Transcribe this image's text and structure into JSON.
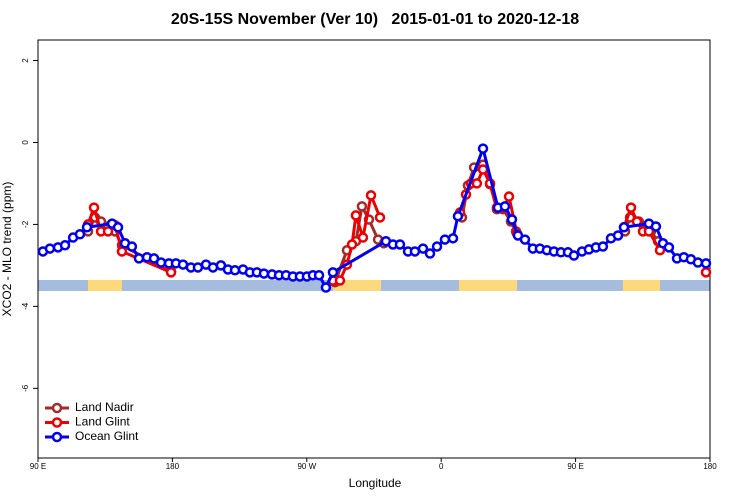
{
  "chart_data": {
    "type": "line",
    "title": "20S-15S November (Ver 10)   2015-01-01 to 2020-12-18",
    "xlabel": "Longitude",
    "ylabel": "XCO2 - MLO trend (ppm)",
    "xlim": [
      90,
      540
    ],
    "ylim": [
      -7.7,
      2.5
    ],
    "xticks": [
      {
        "value": 90,
        "label": "90 E"
      },
      {
        "value": 180,
        "label": "180"
      },
      {
        "value": 270,
        "label": "90 W"
      },
      {
        "value": 360,
        "label": "0"
      },
      {
        "value": 450,
        "label": "90 E"
      },
      {
        "value": 540,
        "label": "180"
      }
    ],
    "yticks": [
      -6,
      -4,
      -2,
      0,
      2
    ],
    "legend": "bottom-left",
    "series": [
      {
        "name": "Land Nadir",
        "color": "#a52a2a",
        "x": [
          123.5,
          128.2,
          132.2,
          136.9,
          141.6,
          146.2,
          179.1,
          null,
          288.9,
          296.9,
          302.9,
          306.9,
          311.6,
          317.7,
          321.7,
          null,
          373.9,
          377.9,
          382.0,
          388.0,
          392.7,
          397.3,
          401.4,
          406.7,
          410.1,
          null,
          483.1,
          486.4,
          492.4,
          496.5,
          500.5,
          505.2
        ],
        "values": [
          -2.17,
          -1.83,
          -1.93,
          -2.05,
          -2.17,
          -2.51,
          -3.15,
          null,
          -3.41,
          -2.63,
          -2.41,
          -1.56,
          -1.88,
          -2.37,
          -2.46,
          null,
          -1.83,
          -1.05,
          -0.61,
          -0.54,
          -1.02,
          -1.63,
          -1.63,
          -1.93,
          -2.17,
          null,
          -2.17,
          -1.83,
          -1.93,
          -2.12,
          -2.17,
          -2.41
        ]
      },
      {
        "name": "Land Glint",
        "color": "#ee0000",
        "x": [
          123.5,
          127.5,
          132.2,
          136.9,
          141.6,
          146.2,
          179.1,
          null,
          287.5,
          292.2,
          296.9,
          300.3,
          302.9,
          307.6,
          313.0,
          319.0,
          null,
          372.6,
          376.6,
          379.9,
          383.9,
          388.0,
          392.7,
          397.3,
          402.0,
          405.4,
          410.7,
          null,
          482.4,
          487.1,
          491.1,
          495.1,
          499.1,
          506.5,
          null,
          537.3
        ],
        "values": [
          -2.0,
          -1.59,
          -2.17,
          -2.17,
          -2.02,
          -2.66,
          -3.17,
          null,
          -3.37,
          -3.37,
          -2.98,
          -2.49,
          -1.78,
          -2.32,
          -1.29,
          -1.83,
          null,
          -1.71,
          -1.27,
          -1.0,
          -1.0,
          -0.66,
          -1.0,
          -1.59,
          -1.59,
          -1.32,
          -2.22,
          null,
          -2.07,
          -1.59,
          -1.93,
          -2.17,
          -2.17,
          -2.63,
          null,
          -3.17
        ]
      },
      {
        "name": "Ocean Glint",
        "color": "#0000ee",
        "x": [
          93.3,
          98.0,
          103.4,
          108.1,
          113.5,
          118.1,
          122.8,
          139.6,
          143.6,
          148.3,
          152.9,
          157.6,
          163.0,
          167.7,
          172.4,
          177.7,
          182.4,
          187.1,
          192.4,
          197.1,
          202.5,
          207.2,
          212.5,
          217.2,
          221.9,
          227.3,
          231.9,
          236.6,
          241.3,
          246.7,
          251.4,
          256.1,
          260.7,
          265.4,
          270.1,
          274.1,
          278.2,
          282.8,
          287.5,
          323.0,
          327.7,
          332.4,
          337.8,
          342.4,
          347.8,
          352.5,
          357.2,
          362.5,
          367.9,
          371.2,
          388.0,
          398.0,
          402.7,
          407.4,
          411.4,
          416.1,
          421.4,
          426.1,
          430.8,
          435.5,
          440.2,
          444.9,
          448.9,
          454.3,
          458.9,
          463.6,
          468.3,
          473.7,
          478.4,
          482.4,
          499.1,
          503.8,
          508.5,
          512.5,
          517.9,
          522.5,
          527.2,
          531.9,
          537.3
        ],
        "values": [
          -2.66,
          -2.59,
          -2.56,
          -2.51,
          -2.32,
          -2.24,
          -2.07,
          -1.98,
          -2.07,
          -2.46,
          -2.54,
          -2.83,
          -2.8,
          -2.83,
          -2.93,
          -2.95,
          -2.95,
          -2.98,
          -3.05,
          -3.05,
          -2.98,
          -3.05,
          -3.0,
          -3.1,
          -3.12,
          -3.1,
          -3.17,
          -3.17,
          -3.2,
          -3.22,
          -3.24,
          -3.24,
          -3.27,
          -3.27,
          -3.27,
          -3.24,
          -3.24,
          -3.54,
          -3.17,
          -2.41,
          -2.49,
          -2.49,
          -2.66,
          -2.66,
          -2.59,
          -2.71,
          -2.54,
          -2.37,
          -2.34,
          -1.8,
          -0.15,
          -1.59,
          -1.56,
          -1.88,
          -2.27,
          -2.37,
          -2.59,
          -2.59,
          -2.63,
          -2.66,
          -2.68,
          -2.68,
          -2.76,
          -2.66,
          -2.61,
          -2.56,
          -2.54,
          -2.34,
          -2.27,
          -2.07,
          -1.98,
          -2.05,
          -2.46,
          -2.56,
          -2.83,
          -2.8,
          -2.85,
          -2.93,
          -2.95
        ]
      }
    ]
  }
}
